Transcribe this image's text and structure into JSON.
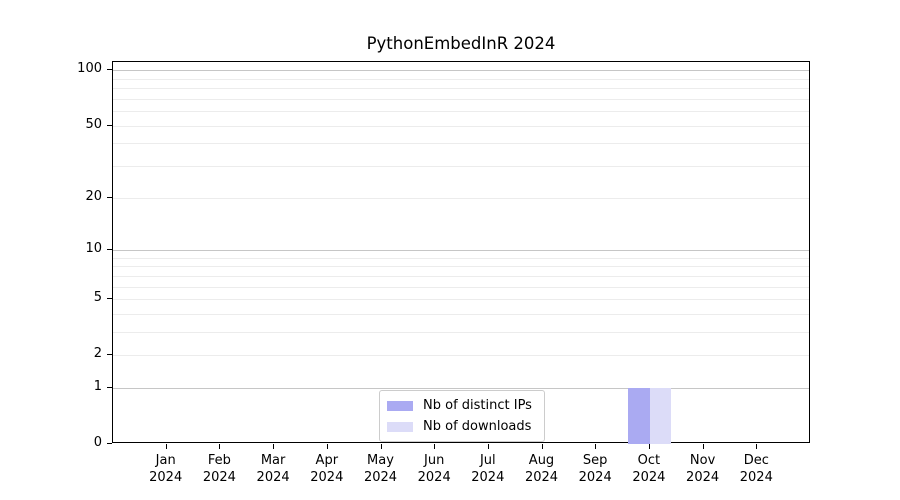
{
  "chart_data": {
    "type": "bar",
    "title": "PythonEmbedInR 2024",
    "categories": [
      "Jan 2024",
      "Feb 2024",
      "Mar 2024",
      "Apr 2024",
      "May 2024",
      "Jun 2024",
      "Jul 2024",
      "Aug 2024",
      "Sep 2024",
      "Oct 2024",
      "Nov 2024",
      "Dec 2024"
    ],
    "series": [
      {
        "name": "Nb of distinct IPs",
        "color": "#aaaaf2",
        "values": [
          0,
          0,
          0,
          0,
          0,
          0,
          0,
          0,
          0,
          1,
          0,
          0
        ]
      },
      {
        "name": "Nb of downloads",
        "color": "#dcdcf8",
        "values": [
          0,
          0,
          0,
          0,
          0,
          0,
          0,
          0,
          0,
          1,
          0,
          0
        ]
      }
    ],
    "yscale": "log1p",
    "ylim": [
      0,
      111
    ],
    "ytick_labels": [
      0,
      1,
      2,
      5,
      10,
      20,
      50,
      100
    ],
    "major_gridlines": [
      1,
      10,
      100
    ],
    "minor_gridlines": [
      2,
      3,
      4,
      5,
      6,
      7,
      8,
      9,
      20,
      30,
      40,
      50,
      60,
      70,
      80,
      90
    ],
    "legend_position": "lower center",
    "grid": true,
    "colors": {
      "major_grid": "#c6c6c6",
      "minor_grid": "#ececec",
      "spine": "#000000",
      "text": "#000000"
    }
  }
}
